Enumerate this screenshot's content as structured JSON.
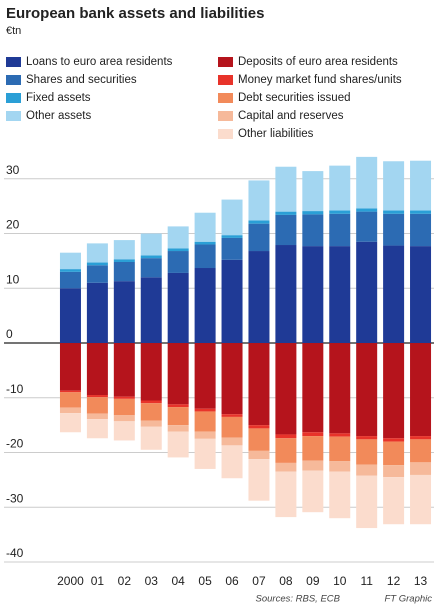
{
  "chart_data": {
    "type": "stacked_bar",
    "title": "European bank assets and liabilities",
    "subtitle": "€tn",
    "categories": [
      "2000",
      "01",
      "02",
      "03",
      "04",
      "05",
      "06",
      "07",
      "08",
      "09",
      "10",
      "11",
      "12",
      "13"
    ],
    "series": [
      {
        "name": "Loans to euro area residents",
        "color": "#1f3a96",
        "values": [
          10,
          11,
          11.3,
          12,
          12.8,
          13.7,
          15.2,
          16.8,
          17.9,
          17.7,
          17.7,
          18.5,
          17.8,
          17.7
        ]
      },
      {
        "name": "Shares and securities",
        "color": "#2c6bb3",
        "values": [
          3,
          3.2,
          3.5,
          3.5,
          4,
          4.3,
          4,
          5,
          5.5,
          5.8,
          5.9,
          5.5,
          5.8,
          5.9
        ]
      },
      {
        "name": "Fixed assets",
        "color": "#2a9fd6",
        "values": [
          0.5,
          0.5,
          0.5,
          0.5,
          0.5,
          0.5,
          0.5,
          0.6,
          0.6,
          0.6,
          0.6,
          0.6,
          0.6,
          0.6
        ]
      },
      {
        "name": "Other assets",
        "color": "#a3d6f1",
        "values": [
          3,
          3.5,
          3.5,
          4,
          4,
          5.3,
          6.5,
          7.3,
          8.2,
          7.3,
          8.2,
          9.4,
          9,
          9.1
        ]
      },
      {
        "name": "Deposits of euro area residents",
        "color": "#b5141c",
        "values": [
          -8.7,
          -9.5,
          -9.8,
          -10.5,
          -11.2,
          -12,
          -13,
          -15,
          -16.7,
          -16.3,
          -16.5,
          -17,
          -17.4,
          -17
        ]
      },
      {
        "name": "Money market fund shares/units",
        "color": "#e8332a",
        "values": [
          -0.3,
          -0.4,
          -0.4,
          -0.5,
          -0.5,
          -0.5,
          -0.5,
          -0.6,
          -0.7,
          -0.7,
          -0.6,
          -0.6,
          -0.6,
          -0.6
        ]
      },
      {
        "name": "Debt securities issued",
        "color": "#f28a5a",
        "values": [
          -2.8,
          -3,
          -3,
          -3.2,
          -3.3,
          -3.7,
          -3.8,
          -4.1,
          -4.5,
          -4.5,
          -4.5,
          -4.6,
          -4.3,
          -4.2
        ]
      },
      {
        "name": "Capital and reserves",
        "color": "#f6b99a",
        "values": [
          -1,
          -1,
          -1.1,
          -1.1,
          -1.2,
          -1.3,
          -1.4,
          -1.5,
          -1.6,
          -1.8,
          -1.9,
          -2,
          -2.2,
          -2.3
        ]
      },
      {
        "name": "Other liabilities",
        "color": "#fbdccd",
        "values": [
          -3.5,
          -3.5,
          -3.5,
          -4.2,
          -4.7,
          -5.5,
          -6,
          -7.6,
          -8.3,
          -7.6,
          -8.5,
          -9.6,
          -8.6,
          -9
        ]
      }
    ],
    "ylim": [
      -40,
      35
    ],
    "yticks": [
      -40,
      -30,
      -20,
      -10,
      0,
      10,
      20,
      30
    ],
    "grid": true,
    "source": "Sources: RBS, ECB",
    "credit": "FT Graphic"
  }
}
